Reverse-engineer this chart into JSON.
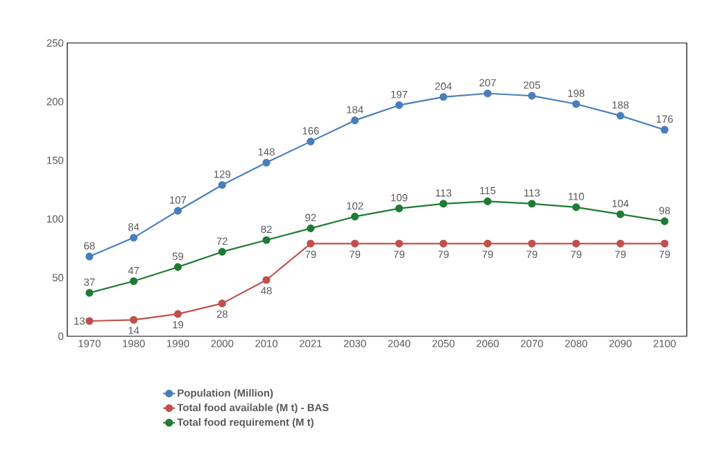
{
  "chart_data": {
    "type": "line",
    "categories": [
      "1970",
      "1980",
      "1990",
      "2000",
      "2010",
      "2021",
      "2030",
      "2040",
      "2050",
      "2060",
      "2070",
      "2080",
      "2090",
      "2100"
    ],
    "series": [
      {
        "name": "Population (Million)",
        "color": "#4a7ebb",
        "values": [
          68,
          84,
          107,
          129,
          148,
          166,
          184,
          197,
          204,
          207,
          205,
          198,
          188,
          176
        ]
      },
      {
        "name": "Total food available (M  t) - BAS",
        "color": "#c0504d",
        "values": [
          13,
          14,
          19,
          28,
          48,
          79,
          79,
          79,
          79,
          79,
          79,
          79,
          79,
          79
        ]
      },
      {
        "name": "Total food requirement (M  t)",
        "color": "#1e7b34",
        "values": [
          37,
          47,
          59,
          72,
          82,
          92,
          102,
          109,
          113,
          115,
          113,
          110,
          104,
          98
        ]
      }
    ],
    "ylim": [
      0,
      250
    ],
    "yticks": [
      0,
      50,
      100,
      150,
      200,
      250
    ],
    "grid": false,
    "legend": "bottom",
    "marker": "circle",
    "line_style": "solid",
    "data_labels": true
  }
}
